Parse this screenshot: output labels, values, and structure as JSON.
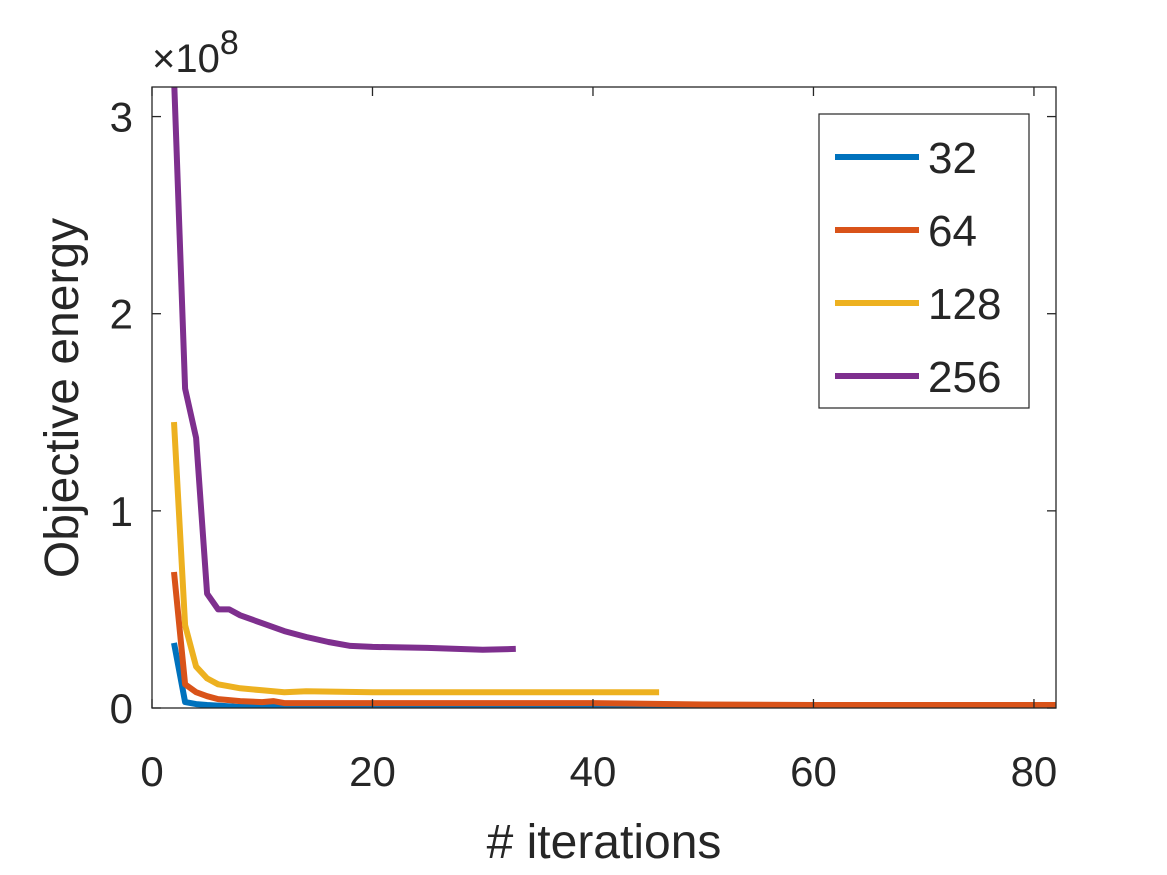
{
  "chart_data": {
    "type": "line",
    "xlabel": "# iterations",
    "ylabel": "Objective energy",
    "y_exponent_label": "×10",
    "y_exponent_power": "8",
    "xlim": [
      0,
      82
    ],
    "ylim": [
      0,
      3.15
    ],
    "xticks": [
      0,
      20,
      40,
      60,
      80
    ],
    "xtick_labels": [
      "0",
      "20",
      "40",
      "60",
      "80"
    ],
    "yticks": [
      0,
      1,
      2,
      3
    ],
    "ytick_labels": [
      "0",
      "1",
      "2",
      "3"
    ],
    "legend_position": "top-right",
    "grid": false,
    "series": [
      {
        "name": "32",
        "color": "#0072BD",
        "x": [
          2,
          3,
          4,
          5,
          6,
          8,
          10,
          12,
          15,
          20,
          25,
          30,
          35,
          40,
          45,
          51
        ],
        "y": [
          0.33,
          0.03,
          0.02,
          0.015,
          0.012,
          0.005,
          0.005,
          0.008,
          0.004,
          0.002,
          0.002,
          0.003,
          0.002,
          0.002,
          0.002,
          0.002
        ]
      },
      {
        "name": "64",
        "color": "#D95319",
        "x": [
          2,
          3,
          4,
          5,
          6,
          7,
          8,
          10,
          11,
          12,
          15,
          20,
          30,
          40,
          50,
          60,
          70,
          82
        ],
        "y": [
          0.69,
          0.12,
          0.08,
          0.06,
          0.045,
          0.04,
          0.035,
          0.03,
          0.035,
          0.025,
          0.025,
          0.025,
          0.025,
          0.025,
          0.018,
          0.015,
          0.015,
          0.015
        ]
      },
      {
        "name": "128",
        "color": "#EDB120",
        "x": [
          2,
          3,
          4,
          5,
          6,
          7,
          8,
          10,
          12,
          14,
          20,
          30,
          40,
          46
        ],
        "y": [
          1.45,
          0.42,
          0.21,
          0.15,
          0.12,
          0.11,
          0.1,
          0.09,
          0.08,
          0.085,
          0.08,
          0.08,
          0.08,
          0.08
        ]
      },
      {
        "name": "256",
        "color": "#7E2F8E",
        "x": [
          2,
          2.5,
          3,
          4,
          5,
          6,
          7,
          8,
          10,
          12,
          14,
          16,
          18,
          20,
          25,
          30,
          33
        ],
        "y": [
          3.2,
          2.4,
          1.62,
          1.37,
          0.58,
          0.5,
          0.5,
          0.47,
          0.43,
          0.39,
          0.36,
          0.335,
          0.315,
          0.31,
          0.305,
          0.295,
          0.3
        ]
      }
    ]
  }
}
